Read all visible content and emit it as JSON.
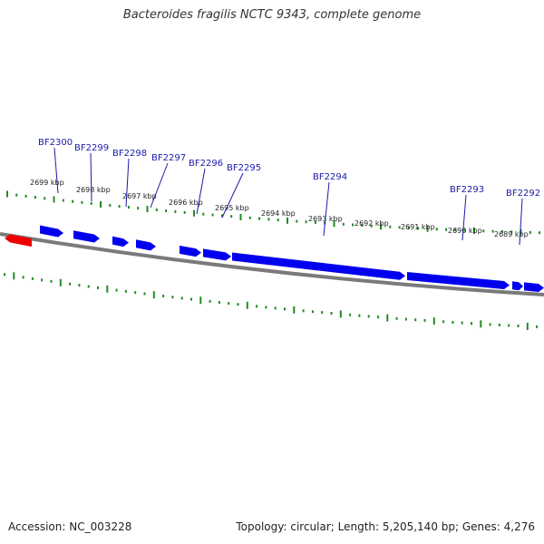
{
  "title": "Bacteroides fragilis NCTC 9343, complete genome",
  "footer": {
    "accession": "Accession: NC_003228",
    "summary": "Topology: circular; Length: 5,205,140 bp; Genes: 4,276"
  },
  "colors": {
    "forward_gene": "#0000ee",
    "reverse_gene": "#ee0000",
    "backbone": "#808080",
    "ticks": "#228b22",
    "gene_label": "#1a1aa8"
  },
  "ruler_labels": [
    "2699 kbp",
    "2698 kbp",
    "2697 kbp",
    "2696 kbp",
    "2695 kbp",
    "2694 kbp",
    "2693 kbp",
    "2692 kbp",
    "2691 kbp",
    "2690 kbp",
    "2689 kbp"
  ],
  "gene_labels": [
    "BF2300",
    "BF2299",
    "BF2298",
    "BF2297",
    "BF2296",
    "BF2295",
    "BF2294",
    "BF2293",
    "BF2292"
  ]
}
